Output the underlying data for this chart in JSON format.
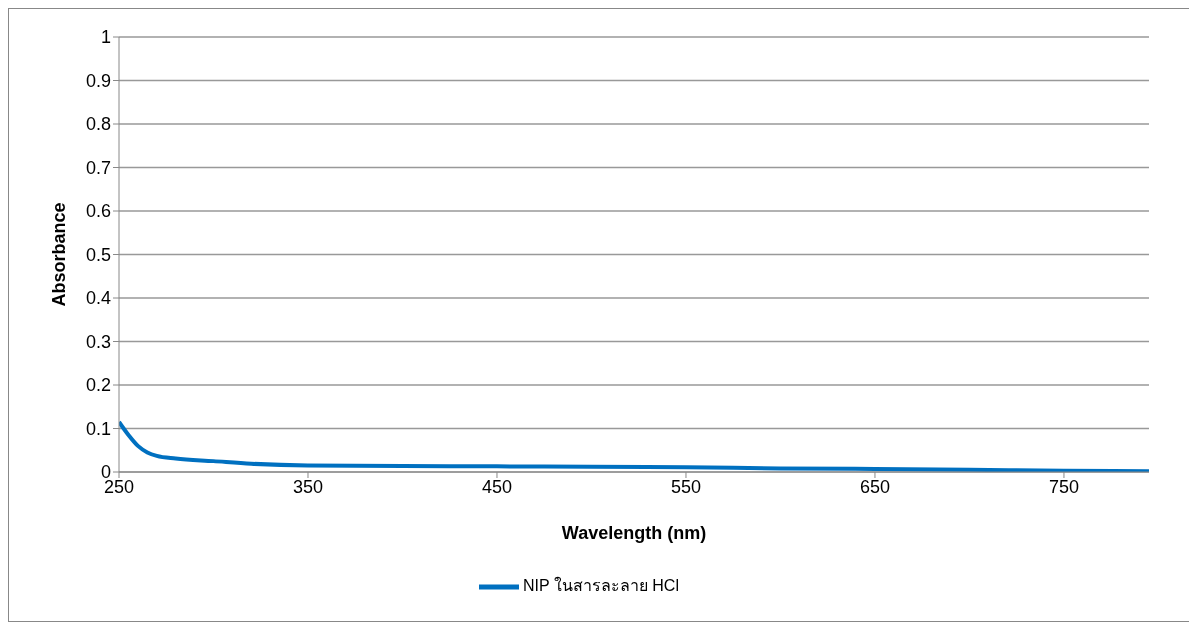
{
  "chart_data": {
    "type": "line",
    "xlabel": "Wavelength (nm)",
    "ylabel": "Absorbance",
    "xlim": [
      250,
      795
    ],
    "xticks": [
      250,
      350,
      450,
      550,
      650,
      750
    ],
    "ylim": [
      0,
      1
    ],
    "yticks": [
      0,
      0.1,
      0.2,
      0.3,
      0.4,
      0.5,
      0.6,
      0.7,
      0.8,
      0.9,
      1
    ],
    "grid": "y",
    "legend": "bottom",
    "marker": "none",
    "line_style": "solid",
    "series": [
      {
        "name": "NIP ในสารละลาย HCl",
        "color": "#0070c0",
        "x": [
          250,
          255,
          260,
          265,
          270,
          280,
          300,
          320,
          350,
          400,
          450,
          500,
          550,
          600,
          650,
          700,
          750,
          795
        ],
        "values": [
          0.115,
          0.085,
          0.06,
          0.045,
          0.037,
          0.031,
          0.025,
          0.019,
          0.015,
          0.014,
          0.013,
          0.012,
          0.011,
          0.008,
          0.007,
          0.005,
          0.003,
          0.002
        ]
      }
    ]
  }
}
